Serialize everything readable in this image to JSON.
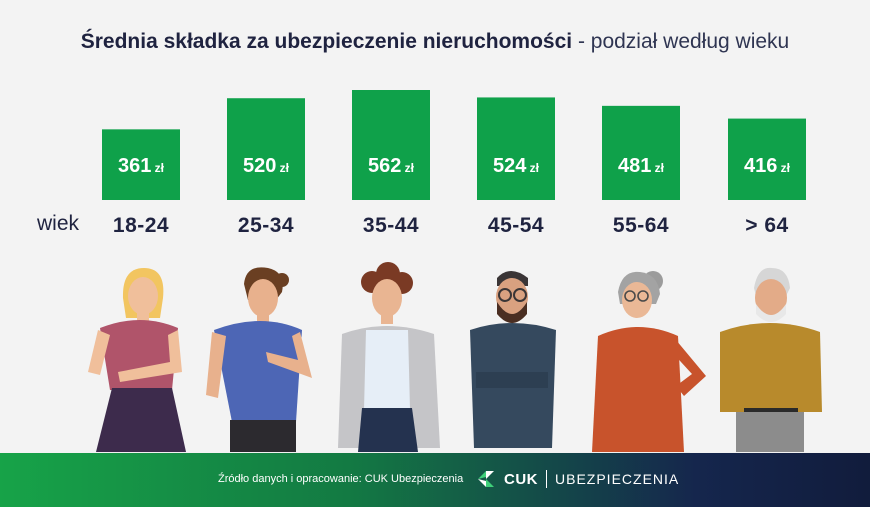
{
  "title_bold": "Średnia składka za ubezpieczenie nieruchomości",
  "title_rest": " - podział według wieku",
  "axis_prefix": "wiek",
  "unit": "zł",
  "chart_data": {
    "type": "bar",
    "title": "Średnia składka za ubezpieczenie nieruchomości - podział według wieku",
    "xlabel": "wiek",
    "ylabel": "",
    "categories": [
      "18-24",
      "25-34",
      "35-44",
      "45-54",
      "55-64",
      "> 64"
    ],
    "values": [
      361,
      520,
      562,
      524,
      481,
      416
    ],
    "ylim": [
      0,
      562
    ],
    "grid": false,
    "bar_color": "#0fa14a"
  },
  "footer": {
    "source": "Źródło danych i opracowanie: CUK Ubezpieczenia",
    "brand_name": "CUK",
    "brand_sub": "UBEZPIECZENIA"
  },
  "colors": {
    "bar": "#0fa14a",
    "text_dark": "#1f2340",
    "background": "#f3f3f3"
  }
}
